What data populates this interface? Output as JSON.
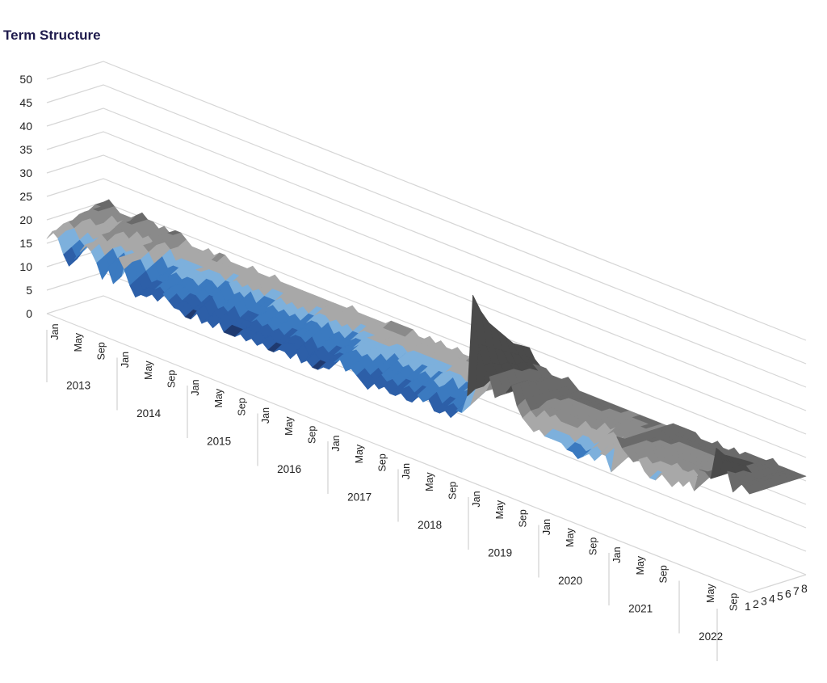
{
  "chart_data": {
    "type": "surface-3d",
    "title": "Term Structure",
    "z_axis": {
      "ticks": [
        "0",
        "5",
        "10",
        "15",
        "20",
        "25",
        "30",
        "35",
        "40",
        "45",
        "50"
      ],
      "range": [
        0,
        50
      ]
    },
    "depth_axis": {
      "ticks": [
        "1",
        "2",
        "3",
        "4",
        "5",
        "6",
        "7",
        "8"
      ]
    },
    "x_axis": {
      "years": [
        {
          "year": "2013",
          "months": [
            "Jan",
            "May",
            "Sep"
          ]
        },
        {
          "year": "2014",
          "months": [
            "Jan",
            "May",
            "Sep"
          ]
        },
        {
          "year": "2015",
          "months": [
            "Jan",
            "May",
            "Sep"
          ]
        },
        {
          "year": "2016",
          "months": [
            "Jan",
            "May",
            "Sep"
          ]
        },
        {
          "year": "2017",
          "months": [
            "Jan",
            "May",
            "Sep"
          ]
        },
        {
          "year": "2018",
          "months": [
            "Jan",
            "May",
            "Sep"
          ]
        },
        {
          "year": "2019",
          "months": [
            "Jan",
            "May",
            "Sep"
          ]
        },
        {
          "year": "2020",
          "months": [
            "Jan",
            "May",
            "Sep"
          ]
        },
        {
          "year": "2021",
          "months": [
            "Jan",
            "May",
            "Sep"
          ]
        },
        {
          "year": "2022",
          "months": [
            "May",
            "Sep"
          ]
        }
      ]
    },
    "series": [
      {
        "name": "1",
        "values": [
          16,
          18,
          17,
          14,
          12,
          14,
          16,
          18,
          17,
          15,
          12,
          15,
          12,
          18,
          16,
          13,
          11,
          12,
          12,
          13,
          12,
          14,
          13,
          12,
          12,
          11,
          11,
          13,
          11,
          12,
          11,
          13,
          11,
          11,
          11,
          12,
          11,
          12,
          11,
          12,
          11,
          11,
          12,
          12,
          11,
          13,
          11,
          12,
          11,
          11,
          12,
          12,
          14,
          15,
          13,
          14,
          13,
          12,
          11,
          13,
          12,
          13,
          12,
          12,
          13,
          12,
          12,
          14,
          13,
          14,
          12,
          12,
          13,
          12,
          14,
          14,
          18,
          40,
          30,
          26,
          24,
          20,
          21,
          22,
          24,
          20,
          18,
          17,
          16,
          17,
          16,
          16,
          16,
          16,
          15,
          15,
          14,
          15,
          16,
          15,
          17,
          17,
          14,
          22,
          20,
          19,
          18,
          19,
          17,
          16,
          16,
          18,
          17,
          16,
          18,
          17,
          19,
          17,
          22,
          22,
          21,
          28,
          26,
          24,
          20,
          23,
          22,
          21
        ]
      },
      {
        "name": "2",
        "values": [
          17,
          18,
          18,
          15,
          13,
          15,
          17,
          18,
          18,
          16,
          14,
          16,
          13,
          18,
          17,
          14,
          12,
          13,
          13,
          14,
          13,
          15,
          14,
          13,
          13,
          12,
          12,
          14,
          12,
          13,
          12,
          14,
          12,
          12,
          12,
          13,
          12,
          13,
          12,
          13,
          12,
          12,
          13,
          13,
          12,
          14,
          12,
          13,
          12,
          12,
          13,
          13,
          15,
          16,
          14,
          15,
          14,
          13,
          12,
          14,
          13,
          14,
          13,
          13,
          14,
          13,
          13,
          15,
          14,
          15,
          13,
          13,
          14,
          13,
          15,
          15,
          19,
          36,
          29,
          26,
          24,
          21,
          21,
          22,
          24,
          21,
          19,
          18,
          17,
          18,
          17,
          17,
          17,
          17,
          16,
          16,
          15,
          16,
          17,
          16,
          18,
          18,
          15,
          21,
          20,
          19,
          18,
          19,
          18,
          17,
          17,
          18,
          18,
          17,
          18,
          18,
          19,
          18,
          21,
          21,
          21,
          26,
          25,
          23,
          21,
          22,
          22,
          21
        ]
      },
      {
        "name": "3",
        "values": [
          18,
          19,
          18,
          16,
          15,
          16,
          17,
          19,
          18,
          17,
          15,
          17,
          15,
          18,
          17,
          15,
          13,
          14,
          14,
          15,
          14,
          15,
          15,
          14,
          14,
          13,
          13,
          15,
          13,
          14,
          13,
          15,
          13,
          13,
          13,
          14,
          13,
          14,
          13,
          14,
          13,
          13,
          14,
          14,
          13,
          15,
          13,
          14,
          13,
          13,
          14,
          14,
          15,
          16,
          15,
          16,
          15,
          14,
          13,
          15,
          14,
          15,
          14,
          14,
          15,
          14,
          14,
          16,
          15,
          16,
          14,
          14,
          15,
          14,
          16,
          16,
          19,
          33,
          28,
          25,
          24,
          21,
          21,
          22,
          24,
          21,
          19,
          19,
          18,
          19,
          18,
          18,
          18,
          18,
          17,
          17,
          16,
          17,
          18,
          17,
          18,
          19,
          16,
          21,
          20,
          19,
          19,
          19,
          18,
          18,
          18,
          19,
          18,
          18,
          19,
          18,
          19,
          19,
          21,
          21,
          21,
          25,
          24,
          23,
          21,
          22,
          22,
          21
        ]
      },
      {
        "name": "4",
        "values": [
          18,
          19,
          19,
          17,
          16,
          17,
          18,
          19,
          19,
          17,
          16,
          17,
          16,
          19,
          18,
          16,
          14,
          15,
          15,
          16,
          15,
          16,
          16,
          15,
          15,
          14,
          14,
          16,
          14,
          15,
          14,
          16,
          14,
          14,
          14,
          15,
          14,
          15,
          14,
          15,
          14,
          14,
          15,
          15,
          14,
          16,
          14,
          15,
          14,
          14,
          15,
          15,
          16,
          17,
          16,
          17,
          16,
          15,
          14,
          16,
          15,
          16,
          15,
          15,
          16,
          15,
          15,
          17,
          16,
          17,
          15,
          15,
          16,
          15,
          17,
          17,
          20,
          31,
          27,
          25,
          24,
          21,
          21,
          22,
          23,
          21,
          20,
          19,
          19,
          19,
          19,
          19,
          19,
          19,
          18,
          18,
          17,
          18,
          19,
          18,
          19,
          19,
          17,
          21,
          20,
          20,
          19,
          20,
          19,
          19,
          19,
          19,
          19,
          19,
          19,
          19,
          20,
          19,
          21,
          21,
          21,
          24,
          23,
          22,
          21,
          22,
          22,
          21
        ]
      },
      {
        "name": "5",
        "values": [
          19,
          20,
          19,
          18,
          17,
          18,
          18,
          20,
          19,
          18,
          17,
          18,
          17,
          19,
          19,
          17,
          15,
          16,
          16,
          17,
          16,
          17,
          17,
          16,
          16,
          15,
          15,
          17,
          15,
          16,
          15,
          17,
          15,
          15,
          15,
          16,
          15,
          16,
          15,
          16,
          15,
          15,
          16,
          16,
          15,
          17,
          15,
          16,
          15,
          15,
          16,
          16,
          17,
          17,
          17,
          17,
          17,
          16,
          15,
          17,
          16,
          17,
          16,
          16,
          17,
          16,
          16,
          17,
          17,
          17,
          16,
          16,
          17,
          16,
          17,
          17,
          20,
          29,
          26,
          24,
          23,
          21,
          21,
          22,
          23,
          21,
          20,
          20,
          19,
          20,
          19,
          19,
          19,
          19,
          19,
          19,
          18,
          19,
          19,
          19,
          19,
          20,
          18,
          21,
          20,
          20,
          20,
          20,
          19,
          19,
          19,
          20,
          19,
          19,
          20,
          19,
          20,
          20,
          21,
          21,
          21,
          23,
          23,
          22,
          21,
          22,
          22,
          21
        ]
      },
      {
        "name": "6",
        "values": [
          19,
          20,
          20,
          18,
          18,
          18,
          19,
          20,
          20,
          19,
          18,
          19,
          18,
          20,
          19,
          18,
          16,
          17,
          17,
          17,
          17,
          17,
          17,
          17,
          17,
          16,
          16,
          17,
          16,
          17,
          16,
          17,
          16,
          16,
          16,
          17,
          16,
          17,
          16,
          17,
          16,
          16,
          17,
          17,
          16,
          17,
          16,
          17,
          16,
          16,
          17,
          17,
          17,
          18,
          17,
          18,
          17,
          17,
          16,
          17,
          17,
          17,
          17,
          17,
          17,
          17,
          17,
          18,
          17,
          18,
          17,
          17,
          17,
          17,
          18,
          18,
          20,
          27,
          25,
          24,
          23,
          21,
          21,
          22,
          23,
          21,
          20,
          20,
          20,
          20,
          20,
          20,
          20,
          20,
          19,
          19,
          19,
          19,
          20,
          19,
          20,
          20,
          19,
          21,
          21,
          20,
          20,
          20,
          20,
          20,
          20,
          20,
          20,
          20,
          20,
          20,
          20,
          20,
          21,
          21,
          21,
          23,
          22,
          22,
          21,
          22,
          22,
          21
        ]
      },
      {
        "name": "7",
        "values": [
          20,
          20,
          20,
          19,
          18,
          19,
          19,
          20,
          20,
          19,
          18,
          19,
          18,
          20,
          20,
          18,
          17,
          18,
          18,
          18,
          18,
          18,
          18,
          18,
          18,
          17,
          17,
          18,
          17,
          18,
          17,
          18,
          17,
          17,
          17,
          18,
          17,
          18,
          17,
          18,
          17,
          17,
          18,
          18,
          17,
          18,
          17,
          18,
          17,
          17,
          18,
          18,
          18,
          18,
          18,
          18,
          18,
          18,
          17,
          18,
          18,
          18,
          18,
          18,
          18,
          18,
          18,
          18,
          18,
          18,
          18,
          18,
          18,
          18,
          18,
          18,
          20,
          26,
          24,
          23,
          22,
          21,
          21,
          21,
          22,
          21,
          20,
          20,
          20,
          20,
          20,
          20,
          20,
          20,
          20,
          20,
          19,
          20,
          20,
          20,
          20,
          20,
          19,
          21,
          21,
          20,
          20,
          20,
          20,
          20,
          20,
          20,
          20,
          20,
          20,
          20,
          20,
          20,
          21,
          21,
          21,
          22,
          22,
          21,
          21,
          21,
          21,
          21
        ]
      },
      {
        "name": "8",
        "values": [
          20,
          21,
          20,
          19,
          19,
          19,
          20,
          21,
          20,
          20,
          19,
          20,
          19,
          20,
          20,
          19,
          18,
          18,
          18,
          19,
          18,
          19,
          19,
          18,
          18,
          18,
          18,
          19,
          18,
          18,
          18,
          19,
          18,
          18,
          18,
          18,
          18,
          18,
          18,
          18,
          18,
          18,
          18,
          18,
          18,
          19,
          18,
          18,
          18,
          18,
          18,
          18,
          19,
          19,
          19,
          19,
          19,
          18,
          18,
          19,
          18,
          19,
          18,
          18,
          19,
          18,
          18,
          19,
          19,
          19,
          18,
          18,
          19,
          18,
          19,
          19,
          20,
          25,
          23,
          22,
          22,
          21,
          21,
          21,
          22,
          21,
          20,
          20,
          20,
          20,
          20,
          20,
          20,
          20,
          20,
          20,
          20,
          20,
          20,
          20,
          20,
          20,
          20,
          21,
          21,
          21,
          21,
          21,
          20,
          20,
          20,
          21,
          20,
          20,
          21,
          20,
          21,
          21,
          21,
          21,
          21,
          22,
          21,
          21,
          21,
          21,
          21,
          21
        ]
      }
    ],
    "colors": [
      "#1f3a70",
      "#2d5fa8",
      "#3b7ac0",
      "#7db0dc",
      "#a8a8a8",
      "#8a8a8a",
      "#6a6a6a",
      "#4a4a4a"
    ]
  }
}
